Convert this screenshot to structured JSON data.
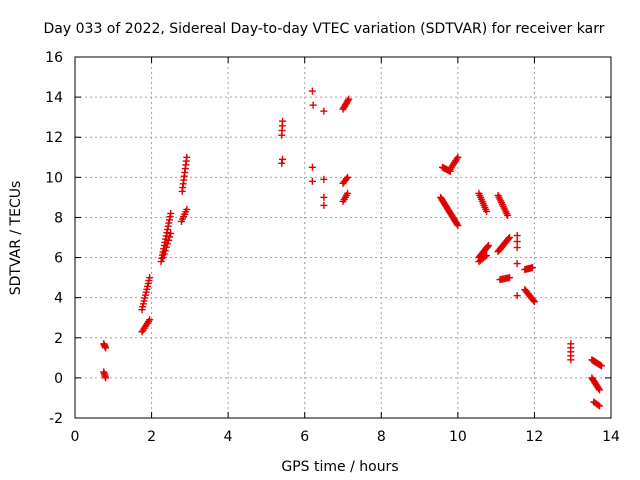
{
  "chart_data": {
    "type": "scatter",
    "title": "Day 033 of 2022, Sidereal Day-to-day VTEC variation (SDTVAR) for receiver karr",
    "xlabel": "GPS time / hours",
    "ylabel": "SDTVAR / TECUs",
    "xlim": [
      0,
      14
    ],
    "ylim": [
      -2,
      16
    ],
    "xticks": [
      "0",
      "2",
      "4",
      "6",
      "8",
      "10",
      "12",
      "14"
    ],
    "yticks": [
      "-2",
      "0",
      "2",
      "4",
      "6",
      "8",
      "10",
      "12",
      "14",
      "16"
    ],
    "grid": true,
    "marker": "+",
    "color": "#e00000",
    "segments": [
      [
        0.75,
        1.7,
        0.8,
        1.5,
        5
      ],
      [
        0.75,
        0.3,
        0.8,
        0.0,
        5
      ],
      [
        1.75,
        3.4,
        1.95,
        5.0,
        12
      ],
      [
        1.75,
        2.3,
        1.95,
        2.9,
        8
      ],
      [
        2.25,
        5.8,
        2.5,
        8.2,
        16
      ],
      [
        2.3,
        6.0,
        2.5,
        7.2,
        8
      ],
      [
        2.8,
        9.3,
        2.92,
        11.0,
        10
      ],
      [
        2.78,
        7.8,
        2.92,
        8.4,
        6
      ],
      [
        5.4,
        12.1,
        5.42,
        12.8,
        4
      ],
      [
        5.4,
        10.7,
        5.42,
        10.9,
        2
      ],
      [
        6.2,
        14.3,
        6.2,
        14.3,
        1
      ],
      [
        6.22,
        13.6,
        6.22,
        13.6,
        1
      ],
      [
        6.2,
        10.5,
        6.2,
        10.5,
        1
      ],
      [
        6.2,
        9.8,
        6.2,
        9.8,
        1
      ],
      [
        6.5,
        13.3,
        6.5,
        13.3,
        1
      ],
      [
        6.5,
        9.9,
        6.5,
        9.9,
        1
      ],
      [
        6.5,
        8.6,
        6.5,
        9.0,
        2
      ],
      [
        7.0,
        13.4,
        7.15,
        13.9,
        8
      ],
      [
        7.0,
        9.7,
        7.12,
        10.0,
        5
      ],
      [
        7.0,
        8.8,
        7.12,
        9.2,
        5
      ],
      [
        9.6,
        10.5,
        9.8,
        10.3,
        8
      ],
      [
        9.8,
        10.4,
        10.0,
        11.0,
        8
      ],
      [
        9.55,
        9.0,
        10.0,
        7.6,
        22
      ],
      [
        10.55,
        9.2,
        10.75,
        8.3,
        10
      ],
      [
        10.55,
        6.0,
        10.8,
        6.6,
        12
      ],
      [
        10.55,
        5.8,
        10.75,
        6.1,
        6
      ],
      [
        11.05,
        9.1,
        11.3,
        8.1,
        12
      ],
      [
        11.05,
        6.3,
        11.35,
        7.0,
        14
      ],
      [
        11.1,
        4.9,
        11.35,
        5.0,
        8
      ],
      [
        11.55,
        7.1,
        11.55,
        6.5,
        3
      ],
      [
        11.55,
        5.7,
        11.55,
        5.7,
        1
      ],
      [
        11.55,
        4.1,
        11.55,
        4.1,
        1
      ],
      [
        11.75,
        5.4,
        11.95,
        5.5,
        8
      ],
      [
        11.75,
        4.4,
        12.0,
        3.8,
        10
      ],
      [
        12.95,
        1.7,
        12.95,
        0.9,
        5
      ],
      [
        13.5,
        0.9,
        13.75,
        0.6,
        10
      ],
      [
        13.5,
        0.0,
        13.7,
        -0.6,
        10
      ],
      [
        13.55,
        -1.2,
        13.7,
        -1.4,
        5
      ]
    ]
  }
}
